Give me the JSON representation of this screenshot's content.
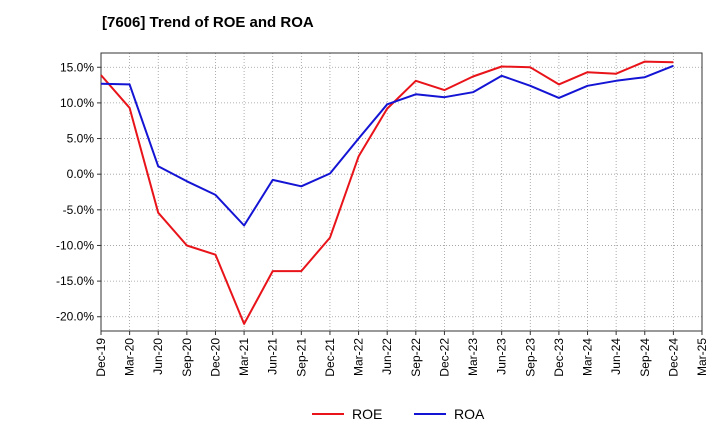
{
  "chart_data": {
    "type": "line",
    "title": "[7606]  Trend of ROE and ROA",
    "xlabel": "",
    "ylabel": "",
    "x": [
      "Dec-19",
      "Mar-20",
      "Jun-20",
      "Sep-20",
      "Dec-20",
      "Mar-21",
      "Jun-21",
      "Sep-21",
      "Dec-21",
      "Mar-22",
      "Jun-22",
      "Sep-22",
      "Dec-22",
      "Mar-23",
      "Jun-23",
      "Sep-23",
      "Dec-23",
      "Mar-24",
      "Jun-24",
      "Sep-24",
      "Dec-24",
      "Mar-25"
    ],
    "ylim": [
      -22,
      17
    ],
    "yticks": [
      {
        "value": 15,
        "label": "15.0%"
      },
      {
        "value": 10,
        "label": "10.0%"
      },
      {
        "value": 5,
        "label": "5.0%"
      },
      {
        "value": 0,
        "label": "0.0%"
      },
      {
        "value": -5,
        "label": "-5.0%"
      },
      {
        "value": -10,
        "label": "-10.0%"
      },
      {
        "value": -15,
        "label": "-15.0%"
      },
      {
        "value": -20,
        "label": "-20.0%"
      }
    ],
    "grid": true,
    "legend_position": "bottom",
    "series": [
      {
        "name": "ROE",
        "color": "#e8141a",
        "values": [
          13.9,
          9.3,
          -5.4,
          -10.0,
          -11.3,
          -21.0,
          -13.6,
          -13.6,
          -8.9,
          2.5,
          9.2,
          13.1,
          11.8,
          13.7,
          15.1,
          15.0,
          12.6,
          14.3,
          14.1,
          15.8,
          15.7,
          null
        ]
      },
      {
        "name": "ROA",
        "color": "#1414d4",
        "values": [
          12.7,
          12.6,
          1.1,
          -1.0,
          -2.9,
          -7.2,
          -0.8,
          -1.7,
          0.1,
          5.0,
          9.8,
          11.2,
          10.8,
          11.5,
          13.8,
          12.4,
          10.7,
          12.4,
          13.1,
          13.6,
          15.2,
          null
        ]
      }
    ]
  }
}
